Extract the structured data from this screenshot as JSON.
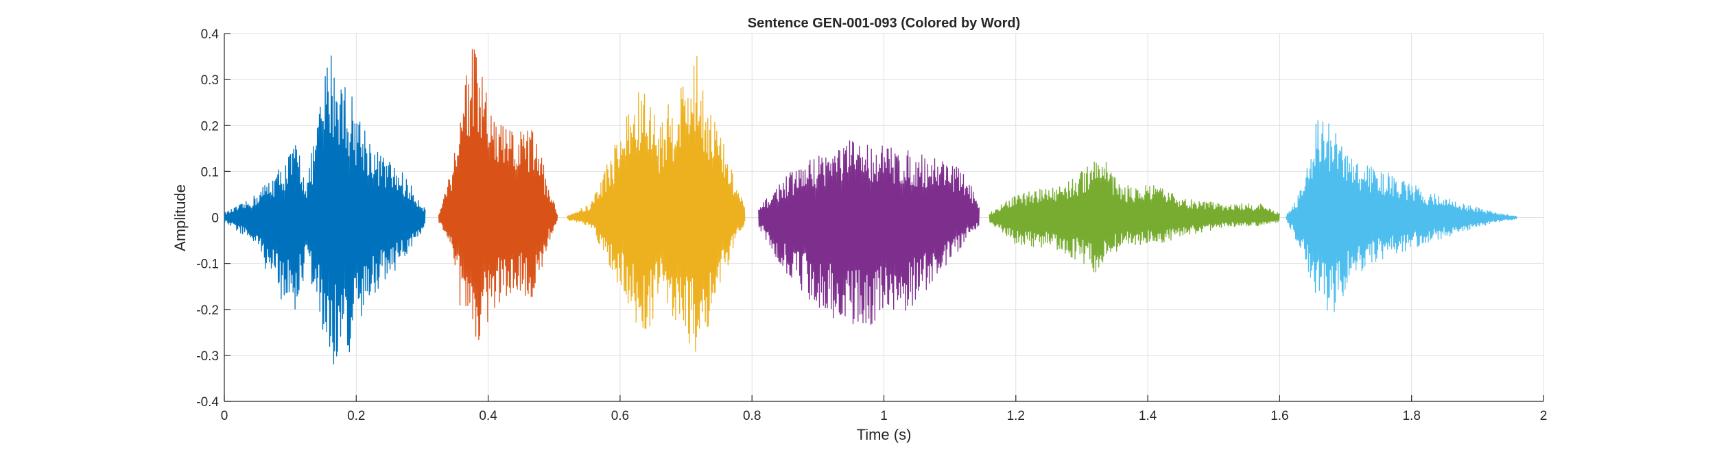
{
  "chart_data": {
    "type": "line",
    "title": "Sentence GEN-001-093 (Colored by Word)",
    "xlabel": "Time (s)",
    "ylabel": "Amplitude",
    "xlim": [
      0,
      2
    ],
    "ylim": [
      -0.4,
      0.4
    ],
    "xticks": [
      0,
      0.2,
      0.4,
      0.6,
      0.8,
      1,
      1.2,
      1.4,
      1.6,
      1.8,
      2
    ],
    "xtick_labels": [
      "0",
      "0.2",
      "0.4",
      "0.6",
      "0.8",
      "1",
      "1.2",
      "1.4",
      "1.6",
      "1.8",
      "2"
    ],
    "yticks": [
      -0.4,
      -0.3,
      -0.2,
      -0.1,
      0,
      0.1,
      0.2,
      0.3,
      0.4
    ],
    "ytick_labels": [
      "-0.4",
      "-0.3",
      "-0.2",
      "-0.1",
      "0",
      "0.1",
      "0.2",
      "0.3",
      "0.4"
    ],
    "grid": true,
    "legend": false,
    "series": [
      {
        "color": "#0072BD",
        "start": 0.0,
        "end": 0.305,
        "envelope": [
          [
            0.0,
            0.01,
            0.01
          ],
          [
            0.04,
            0.04,
            0.05
          ],
          [
            0.09,
            0.12,
            0.19
          ],
          [
            0.11,
            0.17,
            0.21
          ],
          [
            0.125,
            0.08,
            0.1
          ],
          [
            0.16,
            0.38,
            0.33
          ],
          [
            0.19,
            0.28,
            0.3
          ],
          [
            0.23,
            0.15,
            0.16
          ],
          [
            0.27,
            0.1,
            0.1
          ],
          [
            0.305,
            0.02,
            0.02
          ]
        ]
      },
      {
        "color": "#D95319",
        "start": 0.325,
        "end": 0.505,
        "envelope": [
          [
            0.325,
            0.01,
            0.01
          ],
          [
            0.345,
            0.12,
            0.06
          ],
          [
            0.365,
            0.33,
            0.28
          ],
          [
            0.375,
            0.39,
            0.3
          ],
          [
            0.41,
            0.22,
            0.2
          ],
          [
            0.44,
            0.19,
            0.16
          ],
          [
            0.47,
            0.2,
            0.18
          ],
          [
            0.49,
            0.08,
            0.06
          ],
          [
            0.505,
            0.01,
            0.01
          ]
        ]
      },
      {
        "color": "#EDB120",
        "start": 0.52,
        "end": 0.79,
        "envelope": [
          [
            0.52,
            0.005,
            0.005
          ],
          [
            0.555,
            0.03,
            0.02
          ],
          [
            0.58,
            0.12,
            0.1
          ],
          [
            0.615,
            0.25,
            0.2
          ],
          [
            0.635,
            0.29,
            0.28
          ],
          [
            0.66,
            0.21,
            0.18
          ],
          [
            0.695,
            0.31,
            0.25
          ],
          [
            0.715,
            0.36,
            0.3
          ],
          [
            0.74,
            0.24,
            0.22
          ],
          [
            0.775,
            0.08,
            0.06
          ],
          [
            0.79,
            0.02,
            0.01
          ]
        ]
      },
      {
        "color": "#7E2F8E",
        "start": 0.81,
        "end": 1.145,
        "envelope": [
          [
            0.81,
            0.02,
            0.02
          ],
          [
            0.85,
            0.09,
            0.12
          ],
          [
            0.9,
            0.14,
            0.2
          ],
          [
            0.95,
            0.17,
            0.24
          ],
          [
            1.0,
            0.16,
            0.23
          ],
          [
            1.05,
            0.14,
            0.19
          ],
          [
            1.1,
            0.13,
            0.1
          ],
          [
            1.13,
            0.08,
            0.04
          ],
          [
            1.145,
            0.02,
            0.02
          ]
        ]
      },
      {
        "color": "#77AC30",
        "start": 1.16,
        "end": 1.6,
        "envelope": [
          [
            1.16,
            0.01,
            0.01
          ],
          [
            1.2,
            0.05,
            0.06
          ],
          [
            1.26,
            0.07,
            0.07
          ],
          [
            1.3,
            0.1,
            0.1
          ],
          [
            1.325,
            0.16,
            0.13
          ],
          [
            1.36,
            0.07,
            0.06
          ],
          [
            1.41,
            0.07,
            0.06
          ],
          [
            1.46,
            0.04,
            0.04
          ],
          [
            1.52,
            0.03,
            0.02
          ],
          [
            1.57,
            0.03,
            0.02
          ],
          [
            1.6,
            0.01,
            0.01
          ]
        ]
      },
      {
        "color": "#4DBEEE",
        "start": 1.61,
        "end": 1.96,
        "envelope": [
          [
            1.61,
            0.005,
            0.005
          ],
          [
            1.635,
            0.07,
            0.08
          ],
          [
            1.655,
            0.23,
            0.18
          ],
          [
            1.68,
            0.2,
            0.22
          ],
          [
            1.71,
            0.13,
            0.13
          ],
          [
            1.76,
            0.1,
            0.09
          ],
          [
            1.82,
            0.06,
            0.06
          ],
          [
            1.88,
            0.03,
            0.03
          ],
          [
            1.93,
            0.01,
            0.01
          ],
          [
            1.96,
            0.003,
            0.003
          ]
        ]
      }
    ]
  }
}
